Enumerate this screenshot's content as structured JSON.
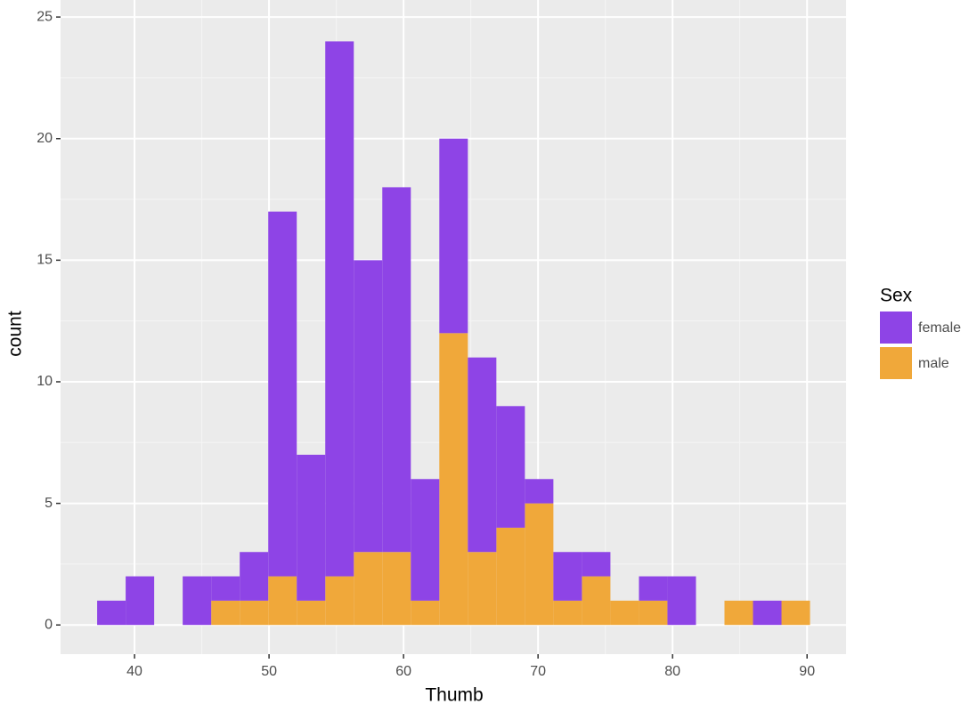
{
  "chart_data": {
    "type": "histogram",
    "x_label": "Thumb",
    "y_label": "count",
    "legend_title": "Sex",
    "bins": [
      37.22,
      39.34,
      41.46,
      43.58,
      45.7,
      47.82,
      49.94,
      52.06,
      54.18,
      56.3,
      58.42,
      60.54,
      62.66,
      64.78,
      66.9,
      69.02,
      71.14,
      73.26,
      75.38,
      77.5,
      79.62,
      81.74,
      83.86,
      85.98,
      88.1,
      90.22
    ],
    "series": [
      {
        "name": "female",
        "color": "#8e44e6",
        "values": [
          1,
          2,
          0,
          2,
          1,
          2,
          15,
          6,
          22,
          12,
          15,
          5,
          8,
          8,
          5,
          1,
          2,
          1,
          0,
          1,
          2,
          0,
          0,
          1,
          0
        ]
      },
      {
        "name": "male",
        "color": "#f0a83a",
        "values": [
          0,
          0,
          0,
          0,
          1,
          1,
          2,
          1,
          2,
          3,
          3,
          1,
          12,
          3,
          4,
          5,
          1,
          2,
          1,
          1,
          0,
          0,
          1,
          0,
          1
        ]
      }
    ],
    "stacked": true,
    "xlim": [
      34.5,
      92.9
    ],
    "ylim": [
      -1.2,
      25.7
    ],
    "xticks": [
      40,
      50,
      60,
      70,
      80,
      90
    ],
    "yticks": [
      0,
      5,
      10,
      15,
      20,
      25
    ],
    "grid": true,
    "legend_position": "right"
  }
}
